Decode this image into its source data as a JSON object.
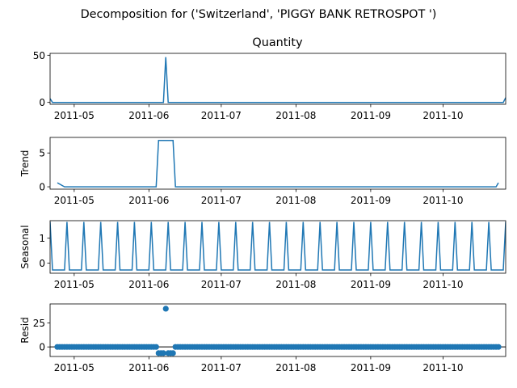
{
  "figure_title": "Decomposition for ('Switzerland', 'PIGGY BANK RETROSPOT ')",
  "series_color": "#1f77b4",
  "chart_data": [
    {
      "type": "line",
      "panel": "observed",
      "title": "Quantity",
      "ylabel": "",
      "ylim": [
        -2,
        52
      ],
      "yticks": [
        0,
        50
      ],
      "xlim": [
        "2011-04-21",
        "2011-10-27"
      ],
      "xticks": [
        "2011-05",
        "2011-06",
        "2011-07",
        "2011-08",
        "2011-09",
        "2011-10"
      ],
      "baseline_value": 0,
      "points": [
        [
          "2011-04-21",
          4
        ],
        [
          "2011-04-22",
          0
        ],
        [
          "2011-06-07",
          0
        ],
        [
          "2011-06-08",
          48
        ],
        [
          "2011-06-09",
          0
        ],
        [
          "2011-10-26",
          0
        ],
        [
          "2011-10-27",
          5
        ]
      ]
    },
    {
      "type": "line",
      "panel": "trend",
      "title": "",
      "ylabel": "Trend",
      "ylim": [
        -0.35,
        7.3
      ],
      "yticks": [
        0,
        5
      ],
      "xlim": [
        "2011-04-21",
        "2011-10-27"
      ],
      "xticks": [
        "2011-05",
        "2011-06",
        "2011-07",
        "2011-08",
        "2011-09",
        "2011-10"
      ],
      "points": [
        [
          "2011-04-24",
          0.6
        ],
        [
          "2011-04-27",
          0
        ],
        [
          "2011-06-04",
          0
        ],
        [
          "2011-06-05",
          6.86
        ],
        [
          "2011-06-11",
          6.86
        ],
        [
          "2011-06-12",
          0
        ],
        [
          "2011-10-23",
          0
        ],
        [
          "2011-10-24",
          0.6
        ]
      ]
    },
    {
      "type": "line",
      "panel": "seasonal",
      "title": "",
      "ylabel": "Seasonal",
      "ylim": [
        -0.4,
        1.7
      ],
      "yticks": [
        0,
        1
      ],
      "xlim": [
        "2011-04-21",
        "2011-10-27"
      ],
      "xticks": [
        "2011-05",
        "2011-06",
        "2011-07",
        "2011-08",
        "2011-09",
        "2011-10"
      ],
      "period_days": 7,
      "first_peak": "2011-04-21",
      "peak_value": 1.65,
      "trough_value": -0.27
    },
    {
      "type": "scatter",
      "panel": "resid",
      "title": "",
      "ylabel": "Resid",
      "ylim": [
        -10,
        45
      ],
      "yticks": [
        0,
        25
      ],
      "xlim": [
        "2011-04-21",
        "2011-10-27"
      ],
      "xticks": [
        "2011-05",
        "2011-06",
        "2011-07",
        "2011-08",
        "2011-09",
        "2011-10"
      ],
      "reference_line": 0,
      "default_value": 0,
      "outliers": [
        [
          "2011-06-05",
          -6.5
        ],
        [
          "2011-06-06",
          -6.5
        ],
        [
          "2011-06-07",
          -6.5
        ],
        [
          "2011-06-08",
          40
        ],
        [
          "2011-06-09",
          -6.5
        ],
        [
          "2011-06-10",
          -6.5
        ],
        [
          "2011-06-11",
          -6.5
        ]
      ],
      "range": [
        "2011-04-24",
        "2011-10-24"
      ]
    }
  ]
}
